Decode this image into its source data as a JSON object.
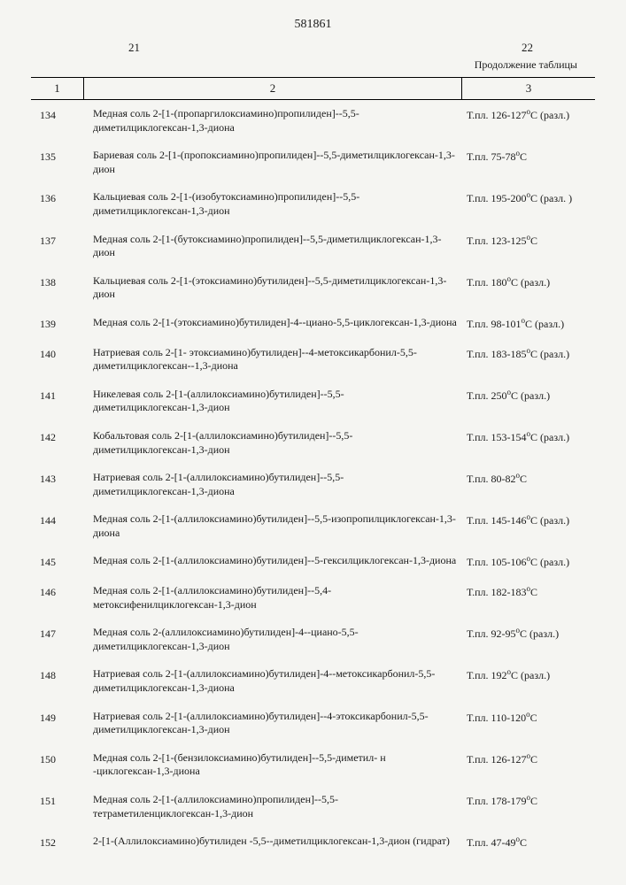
{
  "document_number": "581861",
  "page_left": "21",
  "page_right": "22",
  "continuation_text": "Продолжение таблицы",
  "header": {
    "col1": "1",
    "col2": "2",
    "col3": "3"
  },
  "rows": [
    {
      "num": "134",
      "compound": "Медная соль 2-[1-(пропаргилоксиамино)пропилиден]--5,5-диметилциклогексан-1,3-диона",
      "mp": "Т.пл. 126-127°C (разл.)"
    },
    {
      "num": "135",
      "compound": "Бариевая соль 2-[1-(пропоксиамино)пропилиден]--5,5-диметилциклогексан-1,3-дион",
      "mp": "Т.пл. 75-78°C"
    },
    {
      "num": "136",
      "compound": "Кальциевая соль 2-[1-(изобутоксиамино)пропилиден]--5,5-диметилциклогексан-1,3-дион",
      "mp": "Т.пл. 195-200°C (разл. )"
    },
    {
      "num": "137",
      "compound": "Медная соль 2-[1-(бутоксиамино)пропилиден]--5,5-диметилциклогексан-1,3-дион",
      "mp": "Т.пл. 123-125°C"
    },
    {
      "num": "138",
      "compound": "Кальциевая соль 2-[1-(этоксиамино)бутилиден]--5,5-диметилциклогексан-1,3-дион",
      "mp": "Т.пл. 180°C (разл.)"
    },
    {
      "num": "139",
      "compound": "Медная соль 2-[1-(этоксиамино)бутилиден]-4--циано-5,5-циклогексан-1,3-диона",
      "mp": "Т.пл. 98-101°C (разл.)"
    },
    {
      "num": "140",
      "compound": "Натриевая соль 2-[1- этоксиамино)бутилиден]--4-метоксикарбонил-5,5-диметилциклогексан--1,3-диона",
      "mp": "Т.пл. 183-185°C (разл.)"
    },
    {
      "num": "141",
      "compound": "Никелевая соль 2-[1-(аллилоксиамино)бутилиден]--5,5-диметилциклогексан-1,3-дион",
      "mp": "Т.пл. 250°C (разл.)"
    },
    {
      "num": "142",
      "compound": "Кобальтовая соль 2-[1-(аллилоксиамино)бутилиден]--5,5-диметилциклогексан-1,3-дион",
      "mp": "Т.пл. 153-154°C (разл.)"
    },
    {
      "num": "143",
      "compound": "Натриевая соль 2-[1-(аллилоксиамино)бутилиден]--5,5-диметилциклогексан-1,3-диона",
      "mp": "Т.пл. 80-82°C"
    },
    {
      "num": "144",
      "compound": "Медная соль 2-[1-(аллилоксиамино)бутилиден]--5,5-изопропилциклогексан-1,3-диона",
      "mp": "Т.пл. 145-146°C (разл.)"
    },
    {
      "num": "145",
      "compound": "Медная соль 2-[1-(аллилоксиамино)бутилиден]--5-гексилциклогексан-1,3-диона",
      "mp": "Т.пл. 105-106°C (разл.)"
    },
    {
      "num": "146",
      "compound": "Медная соль 2-[1-(аллилоксиамино)бутилиден]--5,4-метоксифенилциклогексан-1,3-дион",
      "mp": "Т.пл. 182-183°C"
    },
    {
      "num": "147",
      "compound": "Медная соль 2-(аллилоксиамино)бутилиден]-4--циано-5,5-диметилциклогексан-1,3-дион",
      "mp": "Т.пл. 92-95°C (разл.)"
    },
    {
      "num": "148",
      "compound": "Натриевая соль 2-[1-(аллилоксиамино)бутилиден]-4--метоксикарбонил-5,5-диметилциклогексан-1,3-диона",
      "mp": "Т.пл. 192°C (разл.)"
    },
    {
      "num": "149",
      "compound": "Натриевая соль 2-[1-(аллилоксиамино)бутилиден]--4-этоксикарбонил-5,5-диметилциклогексан-1,3-дион",
      "mp": "Т.пл. 110-120°C"
    },
    {
      "num": "150",
      "compound": "Медная соль 2-[1-(бензилоксиамино)бутилиден]--5,5-диметил- н -циклогексан-1,3-диона",
      "mp": "Т.пл. 126-127°C"
    },
    {
      "num": "151",
      "compound": "Медная соль 2-[1-(аллилоксиамино)пропилиден]--5,5-тетраметиленциклогексан-1,3-дион",
      "mp": "Т.пл. 178-179°C"
    },
    {
      "num": "152",
      "compound": "2-[1-(Аллилоксиамино)бутилиден -5,5--диметилциклогексан-1,3-дион (гидрат)",
      "mp": "Т.пл. 47-49°C"
    }
  ]
}
